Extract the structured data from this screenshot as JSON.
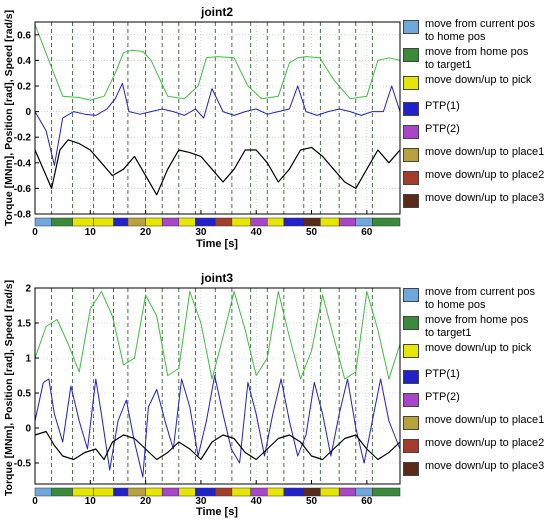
{
  "chart_data": [
    {
      "type": "line",
      "title": "joint2",
      "xlabel": "Time [s]",
      "ylabel": "Torque [MNm], Position [rad], Speed [rad/s]",
      "xlim": [
        0,
        66
      ],
      "ylim": [
        -0.8,
        0.7
      ],
      "xticks": [
        "0",
        "10",
        "20",
        "30",
        "40",
        "50",
        "60"
      ],
      "yticks": [
        "-0.8",
        "-0.6",
        "-0.4",
        "-0.2",
        "0",
        "0.2",
        "0.4",
        "0.6"
      ],
      "grid": true,
      "legend_position": "right",
      "phase_lines_x": [
        3,
        6.8,
        10.6,
        14.2,
        16.8,
        20,
        23,
        26,
        29,
        32.6,
        35.6,
        39,
        42,
        45,
        48.6,
        51.6,
        55,
        58,
        61
      ],
      "series": [
        {
          "color": "#3fbf3f",
          "x": [
            0,
            2.5,
            5,
            8,
            10,
            12.5,
            14.5,
            16,
            17.5,
            19.5,
            21,
            24,
            27,
            29.5,
            31,
            33,
            36,
            38.5,
            41,
            44,
            46,
            47.5,
            49,
            51.5,
            54,
            57,
            60,
            62,
            64,
            66
          ],
          "y": [
            0.68,
            0.4,
            0.12,
            0.11,
            0.09,
            0.12,
            0.3,
            0.46,
            0.48,
            0.47,
            0.4,
            0.12,
            0.1,
            0.2,
            0.42,
            0.43,
            0.42,
            0.2,
            0.1,
            0.12,
            0.38,
            0.42,
            0.43,
            0.42,
            0.25,
            0.1,
            0.12,
            0.4,
            0.42,
            0.4
          ]
        },
        {
          "color": "#1f1fcf",
          "x": [
            0,
            2,
            3.5,
            5,
            7,
            9,
            11,
            13,
            14.5,
            15.8,
            17,
            19,
            21,
            23,
            25,
            27,
            29,
            30.5,
            32,
            34,
            36,
            38,
            40,
            42,
            44,
            46,
            47.5,
            49,
            51,
            53,
            55,
            57,
            59,
            61,
            63,
            64.5,
            66
          ],
          "y": [
            0.0,
            -0.15,
            -0.42,
            -0.05,
            0.0,
            -0.02,
            -0.03,
            0.02,
            0.1,
            0.22,
            0.0,
            -0.02,
            0.0,
            0.02,
            0.0,
            -0.03,
            0.02,
            -0.05,
            0.18,
            0.0,
            -0.03,
            0.0,
            0.02,
            -0.02,
            0.0,
            0.02,
            0.2,
            0.0,
            -0.03,
            0.0,
            0.02,
            0.0,
            -0.03,
            0.0,
            0.0,
            0.2,
            0.0
          ]
        },
        {
          "color": "#000000",
          "x": [
            0,
            2,
            3,
            4.5,
            6,
            8,
            10,
            12,
            14,
            16,
            18,
            20,
            22,
            24,
            26,
            28,
            30,
            32,
            34,
            36,
            38,
            40,
            42,
            44,
            46,
            48,
            50,
            52,
            54,
            56,
            58,
            60,
            62,
            64,
            66
          ],
          "y": [
            -0.3,
            -0.5,
            -0.6,
            -0.3,
            -0.22,
            -0.25,
            -0.3,
            -0.4,
            -0.5,
            -0.45,
            -0.35,
            -0.5,
            -0.65,
            -0.45,
            -0.3,
            -0.32,
            -0.35,
            -0.45,
            -0.55,
            -0.45,
            -0.3,
            -0.3,
            -0.4,
            -0.55,
            -0.45,
            -0.3,
            -0.28,
            -0.35,
            -0.45,
            -0.55,
            -0.6,
            -0.45,
            -0.3,
            -0.4,
            -0.3
          ]
        }
      ]
    },
    {
      "type": "line",
      "title": "joint3",
      "xlabel": "Time [s]",
      "ylabel": "Torque [MNm], Position [rad], Speed [rad/s]",
      "xlim": [
        0,
        66
      ],
      "ylim": [
        -0.8,
        2.0
      ],
      "xticks": [
        "0",
        "10",
        "20",
        "30",
        "40",
        "50",
        "60"
      ],
      "yticks": [
        "-0.5",
        "0",
        "0.5",
        "1",
        "1.5",
        "2"
      ],
      "grid": true,
      "legend_position": "right",
      "phase_lines_x": [
        3,
        6.8,
        10.6,
        14.2,
        16.8,
        20,
        23,
        26,
        29,
        32.6,
        35.6,
        39,
        42,
        45,
        48.6,
        51.6,
        55,
        58,
        61
      ],
      "series": [
        {
          "color": "#3fbf3f",
          "x": [
            0,
            2,
            4,
            6,
            8,
            10,
            12,
            14,
            16,
            18,
            20,
            22,
            24,
            26,
            28,
            30,
            32,
            34,
            36,
            38,
            40,
            42,
            44,
            46,
            48,
            50,
            52,
            54,
            56,
            58,
            60,
            62,
            64,
            66
          ],
          "y": [
            1.0,
            1.45,
            1.55,
            1.2,
            0.8,
            1.7,
            1.95,
            1.6,
            0.9,
            1.0,
            1.9,
            1.6,
            0.75,
            0.85,
            1.95,
            1.5,
            0.7,
            1.3,
            1.95,
            1.4,
            0.75,
            1.0,
            1.95,
            1.3,
            0.7,
            1.1,
            1.9,
            1.3,
            0.7,
            0.8,
            1.95,
            1.4,
            0.7,
            1.2
          ]
        },
        {
          "color": "#1f1fcf",
          "x": [
            0,
            1.5,
            2.5,
            3.5,
            5,
            6.5,
            8,
            9.5,
            11,
            12,
            13.5,
            15,
            16.5,
            18,
            19.5,
            20.5,
            22,
            23.5,
            25,
            26.5,
            28,
            29.5,
            31,
            32.5,
            34,
            35.5,
            37,
            38.5,
            40,
            41.5,
            43,
            44.5,
            46,
            47.5,
            49,
            50.5,
            52,
            53.5,
            55,
            56.5,
            58,
            59.5,
            61,
            62.5,
            64,
            66
          ],
          "y": [
            0.1,
            0.65,
            0.7,
            0.2,
            -0.2,
            0.6,
            0.1,
            -0.3,
            0.7,
            0.2,
            -0.6,
            0.1,
            0.4,
            -0.2,
            -0.7,
            0.3,
            0.55,
            0.1,
            -0.3,
            0.7,
            0.3,
            -0.4,
            0.1,
            0.75,
            0.2,
            -0.3,
            -0.5,
            0.65,
            0.2,
            -0.4,
            0.2,
            0.7,
            0.1,
            -0.4,
            -0.1,
            0.65,
            0.2,
            -0.4,
            0.2,
            0.7,
            0.0,
            -0.5,
            0.1,
            0.7,
            0.1,
            -0.3
          ]
        },
        {
          "color": "#000000",
          "x": [
            0,
            2,
            3.5,
            5,
            7,
            9,
            11,
            12.5,
            14,
            16,
            18,
            20,
            22,
            24,
            26,
            28,
            30,
            32,
            34,
            36,
            38,
            40,
            42,
            44,
            46,
            48,
            50,
            52,
            54,
            56,
            58,
            60,
            62,
            64,
            66
          ],
          "y": [
            -0.1,
            -0.05,
            -0.25,
            -0.4,
            -0.45,
            -0.35,
            -0.3,
            -0.45,
            -0.2,
            -0.1,
            -0.15,
            -0.3,
            -0.45,
            -0.35,
            -0.2,
            -0.3,
            -0.45,
            -0.2,
            -0.1,
            -0.15,
            -0.35,
            -0.45,
            -0.3,
            -0.15,
            -0.1,
            -0.2,
            -0.4,
            -0.45,
            -0.3,
            -0.15,
            -0.1,
            -0.3,
            -0.45,
            -0.35,
            -0.2
          ]
        }
      ]
    }
  ],
  "phase_bar": {
    "colors": [
      "#6fa8dc",
      "#3a8a3a",
      "#e6e600",
      "#e6e600",
      "#2222cc",
      "#b9a23c",
      "#e6e600",
      "#a845c8",
      "#e6e600",
      "#2222cc",
      "#a33d2a",
      "#e6e600",
      "#a845c8",
      "#e6e600",
      "#2222cc",
      "#5a2a1a",
      "#e6e600",
      "#a845c8"
    ]
  },
  "legend": [
    {
      "label": "move from current pos\nto home pos",
      "color": "#6fa8dc"
    },
    {
      "label": "move from home pos\nto target1",
      "color": "#3a8a3a"
    },
    {
      "label": "move down/up to pick",
      "color": "#e6e600"
    },
    {
      "label": "PTP(1)",
      "color": "#2222cc"
    },
    {
      "label": "PTP(2)",
      "color": "#a845c8"
    },
    {
      "label": "move down/up to place1",
      "color": "#b9a23c"
    },
    {
      "label": "move down/up to place2",
      "color": "#a33d2a"
    },
    {
      "label": "move down/up to place3",
      "color": "#5a2a1a"
    }
  ]
}
